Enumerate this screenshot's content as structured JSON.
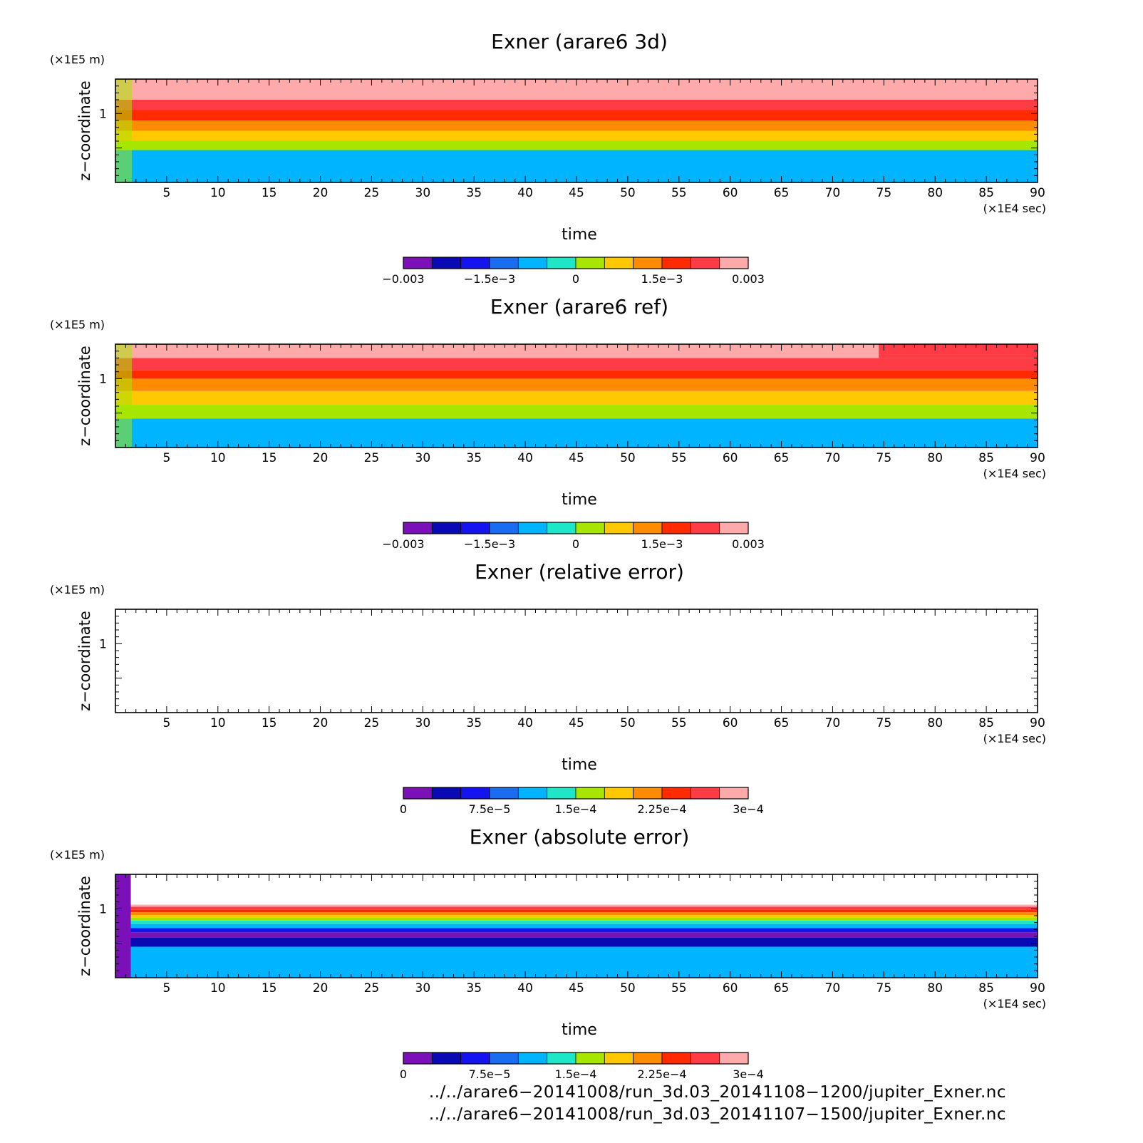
{
  "colors": {
    "scale": [
      "#7b10b8",
      "#0a0ab4",
      "#1414f0",
      "#1a6cf0",
      "#00b4ff",
      "#1ee6c8",
      "#a6e600",
      "#ffc800",
      "#ff8c00",
      "#ff2a00",
      "#ff3c46",
      "#ffaaaa"
    ]
  },
  "chart_data": [
    {
      "type": "heatmap",
      "title": "Exner (arare6 3d)",
      "xlabel": "time",
      "xunit": "(×1E4 sec)",
      "ylabel": "z−coordinate",
      "yunit": "(×1E5 m)",
      "xlim": [
        0,
        90
      ],
      "ylim": [
        0,
        1.5
      ],
      "xticks": [
        "5",
        "10",
        "15",
        "20",
        "25",
        "30",
        "35",
        "40",
        "45",
        "50",
        "55",
        "60",
        "65",
        "70",
        "75",
        "80",
        "85",
        "90"
      ],
      "yticks": [
        "1"
      ],
      "colorbar": {
        "min": -0.003,
        "max": 0.003,
        "levels": 12,
        "tick_labels": [
          "−0.003",
          "−1.5e−3",
          "0",
          "1.5e−3",
          "0.003"
        ]
      },
      "bands": [
        {
          "z_from": 0.0,
          "z_to": 0.47,
          "value": -0.00075
        },
        {
          "z_from": 0.47,
          "z_to": 0.6,
          "value": 0.00025
        },
        {
          "z_from": 0.6,
          "z_to": 0.75,
          "value": 0.00075
        },
        {
          "z_from": 0.75,
          "z_to": 0.9,
          "value": 0.00125
        },
        {
          "z_from": 0.9,
          "z_to": 1.05,
          "value": 0.00175
        },
        {
          "z_from": 1.05,
          "z_to": 1.2,
          "value": 0.00225
        },
        {
          "z_from": 1.2,
          "z_to": 1.5,
          "value": 0.00275
        }
      ]
    },
    {
      "type": "heatmap",
      "title": "Exner (arare6 ref)",
      "xlabel": "time",
      "xunit": "(×1E4 sec)",
      "ylabel": "z−coordinate",
      "yunit": "(×1E5 m)",
      "xlim": [
        0,
        90
      ],
      "ylim": [
        0,
        1.5
      ],
      "xticks": [
        "5",
        "10",
        "15",
        "20",
        "25",
        "30",
        "35",
        "40",
        "45",
        "50",
        "55",
        "60",
        "65",
        "70",
        "75",
        "80",
        "85",
        "90"
      ],
      "yticks": [
        "1"
      ],
      "colorbar": {
        "min": -0.003,
        "max": 0.003,
        "levels": 12,
        "tick_labels": [
          "−0.003",
          "−1.5e−3",
          "0",
          "1.5e−3",
          "0.003"
        ]
      },
      "bands": [
        {
          "z_from": 0.0,
          "z_to": 0.42,
          "value": -0.00075
        },
        {
          "z_from": 0.42,
          "z_to": 0.62,
          "value": 0.00025
        },
        {
          "z_from": 0.62,
          "z_to": 0.82,
          "value": 0.00075
        },
        {
          "z_from": 0.82,
          "z_to": 1.0,
          "value": 0.00125
        },
        {
          "z_from": 1.0,
          "z_to": 1.12,
          "value": 0.00175
        },
        {
          "z_from": 1.12,
          "z_to": 1.3,
          "value": 0.00225
        },
        {
          "z_from": 1.3,
          "z_to": 1.5,
          "value": 0.00275
        }
      ],
      "notes_region": {
        "x_from": 74.5,
        "x_to": 90,
        "z_from": 1.3,
        "z_to": 1.5,
        "value": 0.00225
      }
    },
    {
      "type": "heatmap",
      "title": "Exner (relative error)",
      "xlabel": "time",
      "xunit": "(×1E4 sec)",
      "ylabel": "z−coordinate",
      "yunit": "(×1E5 m)",
      "xlim": [
        0,
        90
      ],
      "ylim": [
        0,
        1.5
      ],
      "xticks": [
        "5",
        "10",
        "15",
        "20",
        "25",
        "30",
        "35",
        "40",
        "45",
        "50",
        "55",
        "60",
        "65",
        "70",
        "75",
        "80",
        "85",
        "90"
      ],
      "yticks": [
        "1"
      ],
      "colorbar": {
        "min": 0,
        "max": 0.0003,
        "levels": 12,
        "tick_labels": [
          "0",
          "7.5e−5",
          "1.5e−4",
          "2.25e−4",
          "3e−4"
        ]
      },
      "bands": []
    },
    {
      "type": "heatmap",
      "title": "Exner (absolute error)",
      "xlabel": "time",
      "xunit": "(×1E4 sec)",
      "ylabel": "z−coordinate",
      "yunit": "(×1E5 m)",
      "xlim": [
        0,
        90
      ],
      "ylim": [
        0,
        1.5
      ],
      "xticks": [
        "5",
        "10",
        "15",
        "20",
        "25",
        "30",
        "35",
        "40",
        "45",
        "50",
        "55",
        "60",
        "65",
        "70",
        "75",
        "80",
        "85",
        "90"
      ],
      "yticks": [
        "1"
      ],
      "colorbar": {
        "min": 0,
        "max": 0.0003,
        "levels": 12,
        "tick_labels": [
          "0",
          "7.5e−5",
          "1.5e−4",
          "2.25e−4",
          "3e−4"
        ]
      },
      "bands": [
        {
          "z_from": 0.0,
          "z_to": 0.45,
          "value": 0.0001125
        },
        {
          "z_from": 0.45,
          "z_to": 0.58,
          "value": 3.75e-05
        },
        {
          "z_from": 0.58,
          "z_to": 0.66,
          "value": 1.25e-05
        },
        {
          "z_from": 0.66,
          "z_to": 0.72,
          "value": 6.25e-05
        },
        {
          "z_from": 0.72,
          "z_to": 0.78,
          "value": 0.0001125
        },
        {
          "z_from": 0.78,
          "z_to": 0.83,
          "value": 0.0001375
        },
        {
          "z_from": 0.83,
          "z_to": 0.87,
          "value": 0.0001625
        },
        {
          "z_from": 0.87,
          "z_to": 0.91,
          "value": 0.0001875
        },
        {
          "z_from": 0.91,
          "z_to": 0.95,
          "value": 0.0002125
        },
        {
          "z_from": 0.95,
          "z_to": 0.99,
          "value": 0.0002375
        },
        {
          "z_from": 0.99,
          "z_to": 1.03,
          "value": 0.0002625
        },
        {
          "z_from": 1.03,
          "z_to": 1.06,
          "value": 0.0002875
        }
      ],
      "spinup": {
        "x_from": 0,
        "x_to": 1.5,
        "value": 1.25e-05
      }
    }
  ],
  "footer": {
    "line1": "../../arare6−20141008/run_3d.03_20141108−1200/jupiter_Exner.nc",
    "line2": "../../arare6−20141008/run_3d.03_20141107−1500/jupiter_Exner.nc"
  }
}
